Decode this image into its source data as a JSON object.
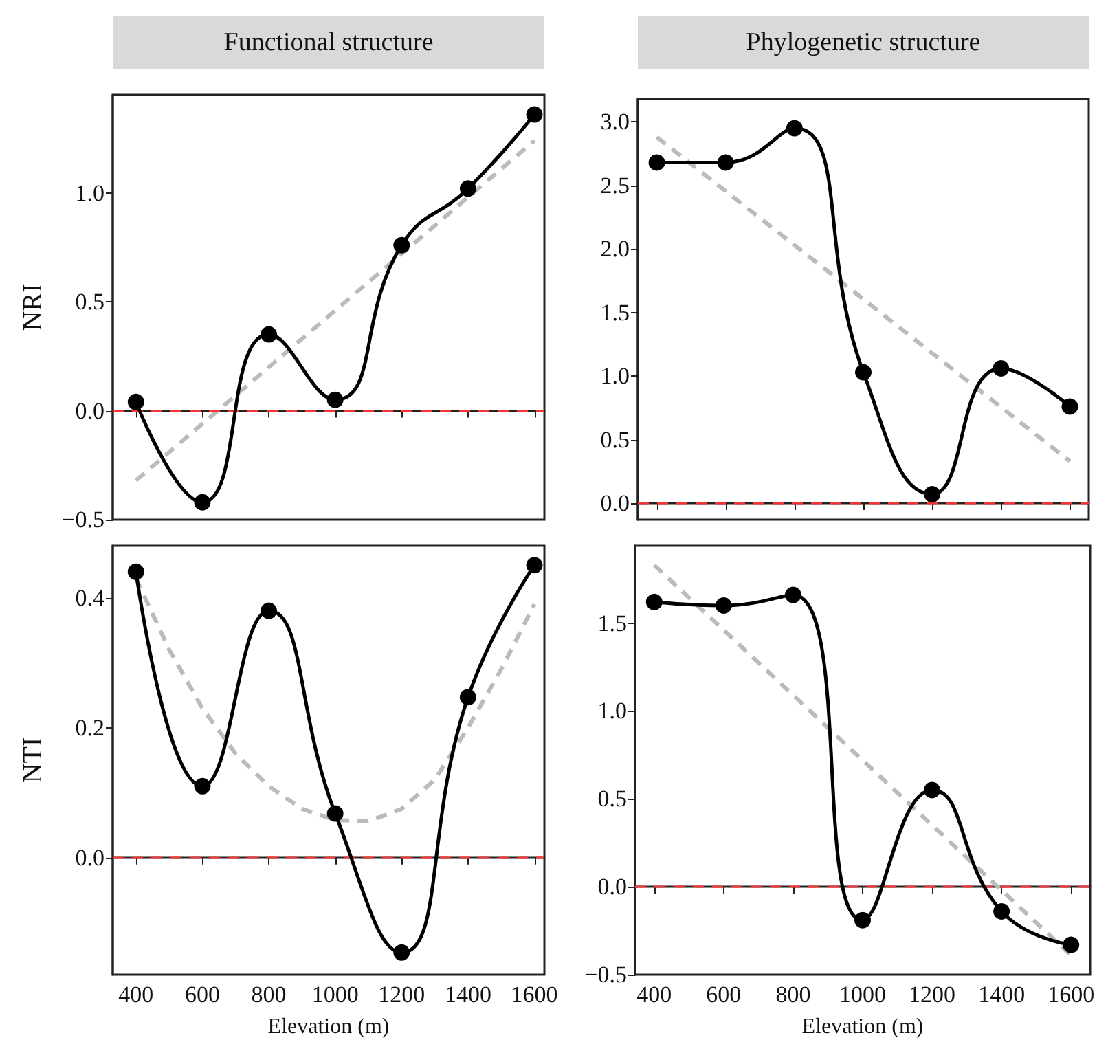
{
  "chart_data": [
    {
      "type": "line",
      "title": "Functional structure",
      "ylabel": "NRI",
      "tick_labels": "y",
      "xlim": [
        330,
        1630
      ],
      "ylim": [
        -0.5,
        1.45
      ],
      "xticks": [
        400,
        600,
        800,
        1000,
        1200,
        1400,
        1600
      ],
      "yticks": [
        {
          "value": -0.5,
          "label": "−0.5"
        },
        {
          "value": 0,
          "label": "0.0"
        },
        {
          "value": 0.5,
          "label": "0.5"
        },
        {
          "value": 1,
          "label": "1.0"
        }
      ],
      "series": [
        {
          "color": "#000000",
          "marker": "circle",
          "line_style": "solid",
          "x": [
            400,
            600,
            800,
            1000,
            1200,
            1400,
            1600
          ],
          "values": [
            0.04,
            -0.42,
            0.35,
            0.05,
            0.76,
            1.02,
            1.36
          ]
        },
        {
          "color": "#bbbbbb",
          "marker": "none",
          "line_style": "dashed",
          "x": [
            400,
            1600
          ],
          "values": [
            -0.32,
            1.24
          ]
        }
      ],
      "ref_lines": [
        {
          "axis": "y",
          "value": 0,
          "color": "#ff3333",
          "line_style": "dashed"
        }
      ]
    },
    {
      "type": "line",
      "title": "Phylogenetic structure",
      "tick_labels": "y",
      "xlim": [
        345,
        1655
      ],
      "ylim": [
        -0.13,
        3.18
      ],
      "xticks": [
        400,
        600,
        800,
        1000,
        1200,
        1400,
        1600
      ],
      "yticks": [
        {
          "value": 0,
          "label": "0.0"
        },
        {
          "value": 0.5,
          "label": "0.5"
        },
        {
          "value": 1,
          "label": "1.0"
        },
        {
          "value": 1.5,
          "label": "1.5"
        },
        {
          "value": 2,
          "label": "2.0"
        },
        {
          "value": 2.5,
          "label": "2.5"
        },
        {
          "value": 3,
          "label": "3.0"
        }
      ],
      "series": [
        {
          "color": "#000000",
          "marker": "circle",
          "line_style": "solid",
          "x": [
            400,
            600,
            800,
            1000,
            1200,
            1400,
            1600
          ],
          "values": [
            2.68,
            2.68,
            2.95,
            1.03,
            0.07,
            1.06,
            0.76
          ]
        },
        {
          "color": "#bbbbbb",
          "marker": "none",
          "line_style": "dashed",
          "x": [
            400,
            1600
          ],
          "values": [
            2.88,
            0.33
          ]
        }
      ],
      "ref_lines": [
        {
          "axis": "y",
          "value": 0,
          "color": "#ff3333",
          "line_style": "dashed"
        }
      ]
    },
    {
      "type": "line",
      "xlabel": "Elevation (m)",
      "ylabel": "NTI",
      "xlim": [
        330,
        1630
      ],
      "ylim": [
        -0.18,
        0.48
      ],
      "xticks": [
        400,
        600,
        800,
        1000,
        1200,
        1400,
        1600
      ],
      "yticks": [
        {
          "value": 0,
          "label": "0.0"
        },
        {
          "value": 0.2,
          "label": "0.2"
        },
        {
          "value": 0.4,
          "label": "0.4"
        }
      ],
      "series": [
        {
          "color": "#000000",
          "marker": "circle",
          "line_style": "solid",
          "x": [
            400,
            600,
            800,
            1000,
            1200,
            1400,
            1600
          ],
          "values": [
            0.44,
            0.11,
            0.38,
            0.068,
            -0.146,
            0.247,
            0.45
          ]
        },
        {
          "color": "#bbbbbb",
          "marker": "none",
          "line_style": "dashed",
          "x": [
            400,
            500,
            600,
            700,
            800,
            900,
            1000,
            1100,
            1200,
            1300,
            1400,
            1500,
            1600
          ],
          "values": [
            0.43,
            0.32,
            0.23,
            0.16,
            0.11,
            0.075,
            0.058,
            0.056,
            0.075,
            0.12,
            0.2,
            0.29,
            0.39
          ]
        }
      ],
      "ref_lines": [
        {
          "axis": "y",
          "value": 0,
          "color": "#ff3333",
          "line_style": "dashed"
        }
      ]
    },
    {
      "type": "line",
      "xlabel": "Elevation (m)",
      "xlim": [
        345,
        1655
      ],
      "ylim": [
        -0.5,
        1.94
      ],
      "xticks": [
        400,
        600,
        800,
        1000,
        1200,
        1400,
        1600
      ],
      "yticks": [
        {
          "value": -0.5,
          "label": "−0.5"
        },
        {
          "value": 0,
          "label": "0.0"
        },
        {
          "value": 0.5,
          "label": "0.5"
        },
        {
          "value": 1,
          "label": "1.0"
        },
        {
          "value": 1.5,
          "label": "1.5"
        }
      ],
      "series": [
        {
          "color": "#000000",
          "marker": "circle",
          "line_style": "solid",
          "x": [
            400,
            600,
            800,
            1000,
            1200,
            1400,
            1600
          ],
          "values": [
            1.62,
            1.6,
            1.66,
            -0.19,
            0.55,
            -0.14,
            -0.33
          ]
        },
        {
          "color": "#bbbbbb",
          "marker": "none",
          "line_style": "dashed",
          "x": [
            400,
            1600
          ],
          "values": [
            1.83,
            -0.39
          ]
        }
      ],
      "ref_lines": [
        {
          "axis": "y",
          "value": 0,
          "color": "#ff3333",
          "line_style": "dashed"
        }
      ]
    }
  ]
}
